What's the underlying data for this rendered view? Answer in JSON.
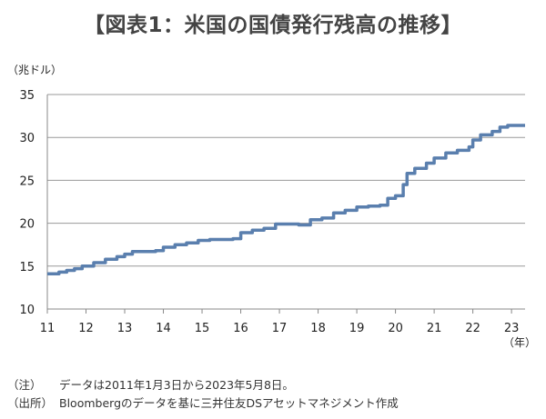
{
  "title": "【図表1：米国の国債発行残高の推移】",
  "unit_label": "（兆ドル）",
  "x_unit_label": "（年）",
  "notes": [
    {
      "key": "（注）",
      "text": "データは2011年1月3日から2023年5月8日。"
    },
    {
      "key": "（出所）",
      "text": "Bloombergのデータを基に三井住友DSアセットマネジメント作成"
    }
  ],
  "chart_data": {
    "type": "line",
    "title": "米国の国債発行残高の推移",
    "ylabel": "兆ドル",
    "xlabel": "年",
    "ylim": [
      10,
      35
    ],
    "xlim": [
      2011.0,
      2023.35
    ],
    "yticks": [
      10,
      15,
      20,
      25,
      30,
      35
    ],
    "xticks": [
      11,
      12,
      13,
      14,
      15,
      16,
      17,
      18,
      19,
      20,
      21,
      22,
      23
    ],
    "grid": "horizontal",
    "color": "#5a7fae",
    "series": [
      {
        "values": [
          [
            2011.0,
            14.1
          ],
          [
            2011.3,
            14.3
          ],
          [
            2011.5,
            14.5
          ],
          [
            2011.7,
            14.7
          ],
          [
            2011.9,
            15.0
          ],
          [
            2012.2,
            15.4
          ],
          [
            2012.5,
            15.8
          ],
          [
            2012.8,
            16.1
          ],
          [
            2013.0,
            16.4
          ],
          [
            2013.2,
            16.7
          ],
          [
            2013.5,
            16.7
          ],
          [
            2013.8,
            16.8
          ],
          [
            2014.0,
            17.2
          ],
          [
            2014.3,
            17.5
          ],
          [
            2014.6,
            17.7
          ],
          [
            2014.9,
            18.0
          ],
          [
            2015.2,
            18.1
          ],
          [
            2015.5,
            18.1
          ],
          [
            2015.8,
            18.2
          ],
          [
            2016.0,
            18.9
          ],
          [
            2016.3,
            19.2
          ],
          [
            2016.6,
            19.4
          ],
          [
            2016.9,
            19.9
          ],
          [
            2017.2,
            19.9
          ],
          [
            2017.5,
            19.8
          ],
          [
            2017.8,
            20.4
          ],
          [
            2018.1,
            20.6
          ],
          [
            2018.4,
            21.2
          ],
          [
            2018.7,
            21.5
          ],
          [
            2019.0,
            21.9
          ],
          [
            2019.3,
            22.0
          ],
          [
            2019.6,
            22.1
          ],
          [
            2019.8,
            22.9
          ],
          [
            2020.0,
            23.2
          ],
          [
            2020.2,
            24.5
          ],
          [
            2020.3,
            25.8
          ],
          [
            2020.5,
            26.4
          ],
          [
            2020.8,
            27.0
          ],
          [
            2021.0,
            27.6
          ],
          [
            2021.3,
            28.2
          ],
          [
            2021.6,
            28.5
          ],
          [
            2021.9,
            28.9
          ],
          [
            2022.0,
            29.7
          ],
          [
            2022.2,
            30.3
          ],
          [
            2022.5,
            30.7
          ],
          [
            2022.7,
            31.2
          ],
          [
            2022.9,
            31.4
          ],
          [
            2023.0,
            31.4
          ],
          [
            2023.35,
            31.4
          ]
        ]
      }
    ]
  }
}
